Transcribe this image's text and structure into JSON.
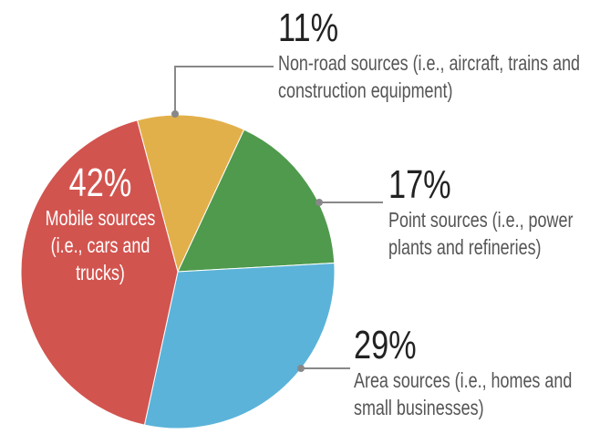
{
  "chart_data": {
    "type": "pie",
    "categories": [
      "Non-road sources (i.e., aircraft, trains and construction equipment)",
      "Point sources (i.e., power plants and refineries)",
      "Area sources (i.e., homes and small businesses)",
      "Mobile sources (i.e., cars and trucks)"
    ],
    "values": [
      11,
      17,
      29,
      42
    ],
    "value_labels": [
      "11%",
      "17%",
      "29%",
      "42%"
    ],
    "colors": [
      "#e2b04a",
      "#4f9a4d",
      "#5bb3d9",
      "#d2544f"
    ]
  }
}
